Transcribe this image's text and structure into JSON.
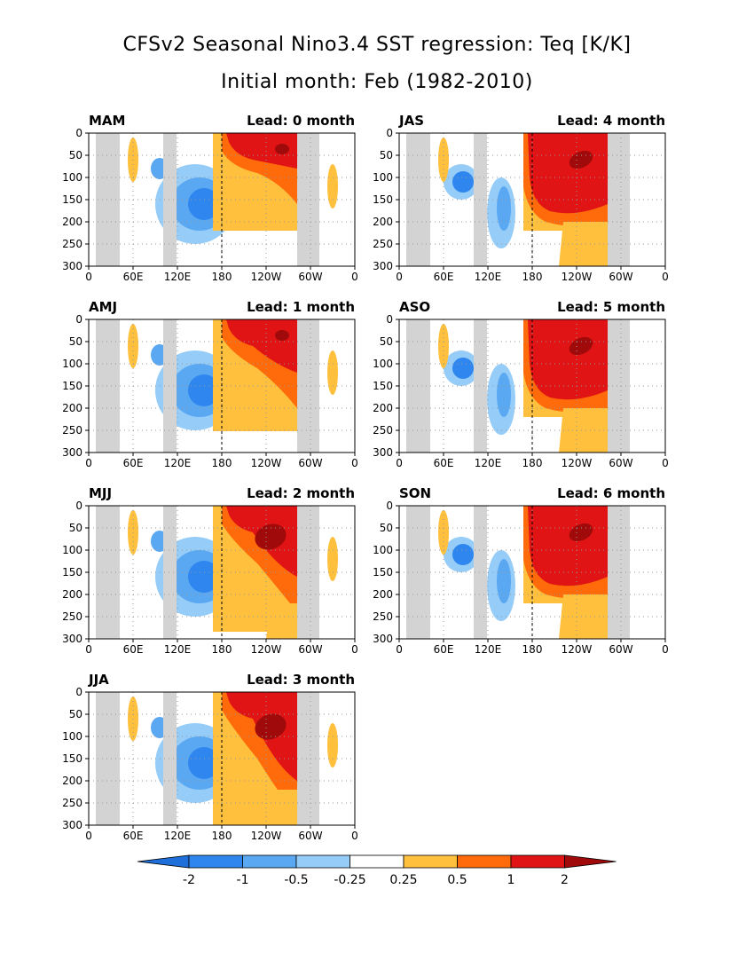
{
  "title": "CFSv2 Seasonal Nino3.4 SST regression: Teq [K/K]",
  "subtitle": "Initial month: Feb (1982-2010)",
  "chart_data": {
    "type": "heatmap",
    "description_x": "longitude",
    "x_ticks": [
      "0",
      "60E",
      "120E",
      "180",
      "120W",
      "60W",
      "0"
    ],
    "y_ticks": [
      "0",
      "50",
      "100",
      "150",
      "200",
      "250",
      "300"
    ],
    "ylim": [
      300,
      0
    ],
    "grid": true,
    "colorbar": {
      "labels": [
        "-2",
        "-1",
        "-0.5",
        "-0.25",
        "0.25",
        "0.5",
        "1",
        "2"
      ],
      "colors": [
        "#1e6fd9",
        "#2e86ee",
        "#5aa8f2",
        "#96ccf8",
        "#ffffff",
        "#ffc03e",
        "#ff6a0a",
        "#e01414",
        "#a00a0a"
      ]
    },
    "panels": [
      {
        "season": "MAM",
        "lead": "Lead: 0 month"
      },
      {
        "season": "JAS",
        "lead": "Lead: 4 month"
      },
      {
        "season": "AMJ",
        "lead": "Lead: 1 month"
      },
      {
        "season": "ASO",
        "lead": "Lead: 5 month"
      },
      {
        "season": "MJJ",
        "lead": "Lead: 2 month"
      },
      {
        "season": "SON",
        "lead": "Lead: 6 month"
      },
      {
        "season": "JJA",
        "lead": "Lead: 3 month"
      }
    ]
  }
}
